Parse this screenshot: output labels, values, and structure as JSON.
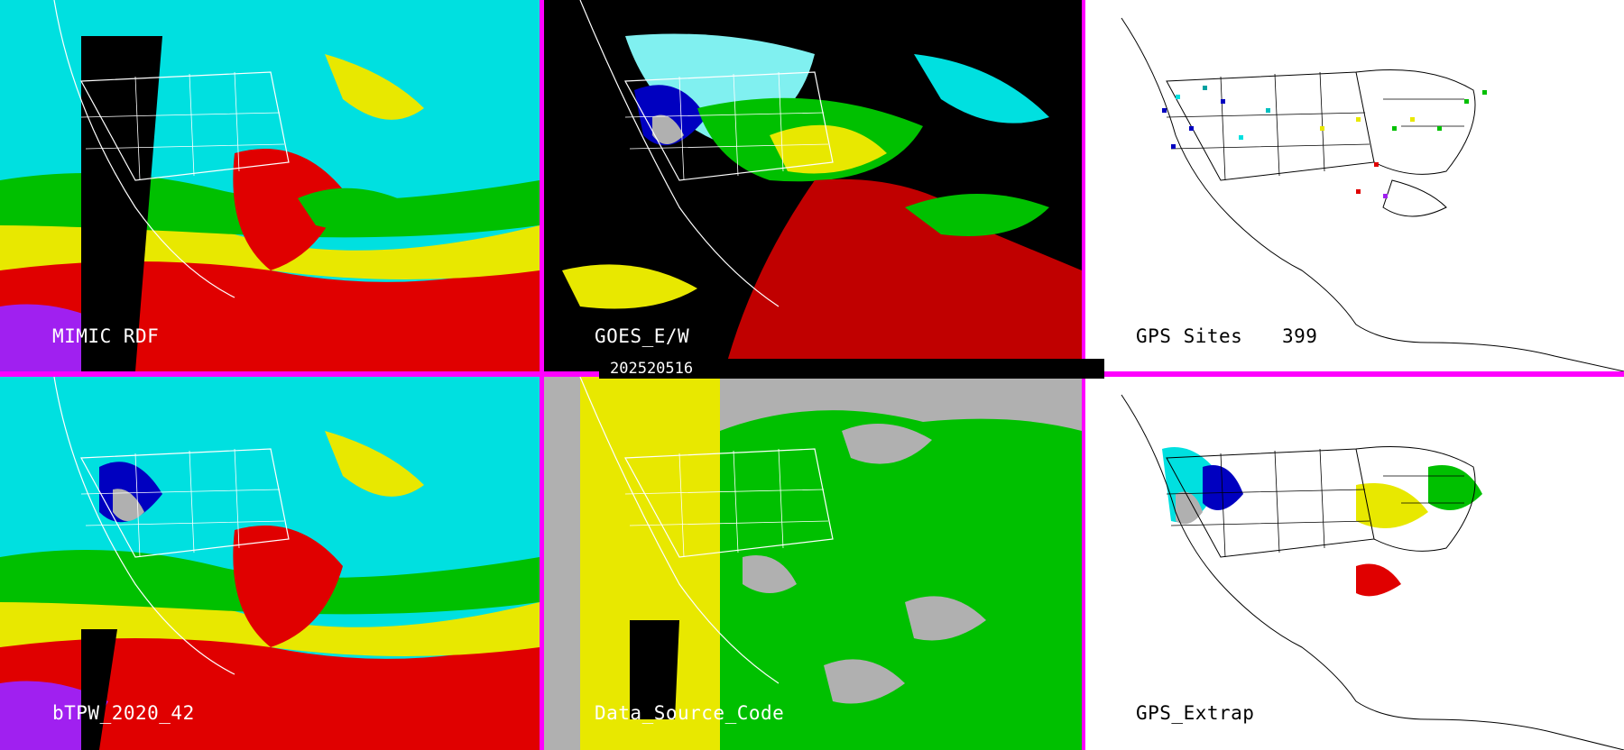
{
  "date": "202520516",
  "panels": {
    "mimic": {
      "label": "MIMIC RDF"
    },
    "goes": {
      "label": "GOES_E/W"
    },
    "gps_sites": {
      "label": "GPS Sites",
      "count": "399"
    },
    "btpw": {
      "label": "bTPW_2020_42"
    },
    "data_source": {
      "label": "Data_Source_Code"
    },
    "gps_extrap": {
      "label": "GPS_Extrap"
    }
  },
  "colors": {
    "divider": "#ff00ff",
    "magenta": "#a020f0",
    "red": "#e00000",
    "dark_red": "#c00000",
    "yellow": "#e8e800",
    "green": "#00c000",
    "light_green": "#80e020",
    "cyan": "#00e0e0",
    "light_cyan": "#80f0f0",
    "blue": "#0000c0",
    "gray": "#b0b0b0",
    "black": "#000000",
    "white": "#ffffff"
  }
}
